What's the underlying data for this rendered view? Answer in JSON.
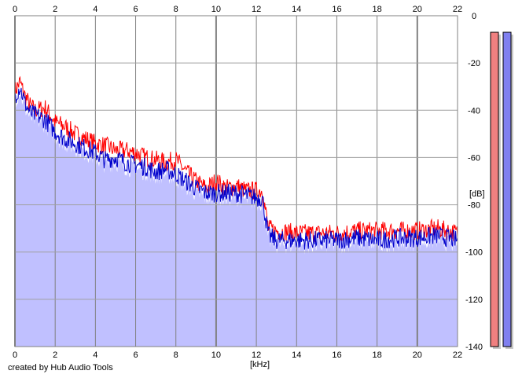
{
  "credit": "created by Hub Audio Tools",
  "chart_data": {
    "type": "line",
    "xlabel": "[kHz]",
    "ylabel": "[dB]",
    "xlim": [
      0,
      22
    ],
    "ylim": [
      -140,
      0
    ],
    "x_ticks": [
      0,
      2,
      4,
      6,
      8,
      10,
      12,
      14,
      16,
      18,
      20,
      22
    ],
    "y_ticks": [
      0,
      -20,
      -40,
      -60,
      -80,
      -100,
      -120,
      -140
    ],
    "y_tick_labels": [
      "0",
      "-20",
      "-40",
      "-60",
      "-80",
      "-100",
      "-120",
      "-140"
    ],
    "grid": true,
    "series": [
      {
        "color": "#ff0000",
        "x": [
          0,
          0.25,
          0.5,
          0.75,
          1,
          1.5,
          2,
          2.5,
          3,
          3.5,
          4,
          4.5,
          5,
          5.5,
          6,
          6.5,
          7,
          7.5,
          8,
          8.5,
          9,
          9.5,
          10,
          10.5,
          11,
          11.5,
          12,
          12.3,
          12.6,
          13,
          14,
          15,
          16,
          17,
          18,
          19,
          20,
          21,
          22
        ],
        "values": [
          -32,
          -28,
          -34,
          -38,
          -40,
          -39,
          -45,
          -47,
          -50,
          -52,
          -54,
          -55,
          -57,
          -57,
          -58,
          -60,
          -61,
          -62,
          -61,
          -66,
          -70,
          -73,
          -70,
          -73,
          -72,
          -74,
          -74,
          -74,
          -90,
          -91,
          -92,
          -92,
          -92,
          -91,
          -91,
          -91,
          -91,
          -90,
          -92
        ]
      },
      {
        "color": "#0000cc",
        "x": [
          0,
          0.25,
          0.5,
          0.75,
          1,
          1.5,
          2,
          2.5,
          3,
          3.5,
          4,
          4.5,
          5,
          5.5,
          6,
          6.5,
          7,
          7.5,
          8,
          8.5,
          9,
          9.5,
          10,
          10.5,
          11,
          11.5,
          12,
          12.3,
          12.6,
          13,
          14,
          15,
          16,
          17,
          18,
          19,
          20,
          21,
          22
        ],
        "values": [
          -34,
          -30,
          -37,
          -41,
          -42,
          -44,
          -49,
          -52,
          -54,
          -56,
          -58,
          -61,
          -60,
          -62,
          -63,
          -64,
          -66,
          -65,
          -67,
          -70,
          -73,
          -75,
          -75,
          -75,
          -75,
          -76,
          -77,
          -77,
          -93,
          -95,
          -95,
          -95,
          -95,
          -94,
          -95,
          -94,
          -94,
          -93,
          -95
        ]
      }
    ],
    "level_meters": [
      {
        "color": "#f08080",
        "value_db": -7
      },
      {
        "color": "#8080f0",
        "value_db": -7
      }
    ]
  }
}
